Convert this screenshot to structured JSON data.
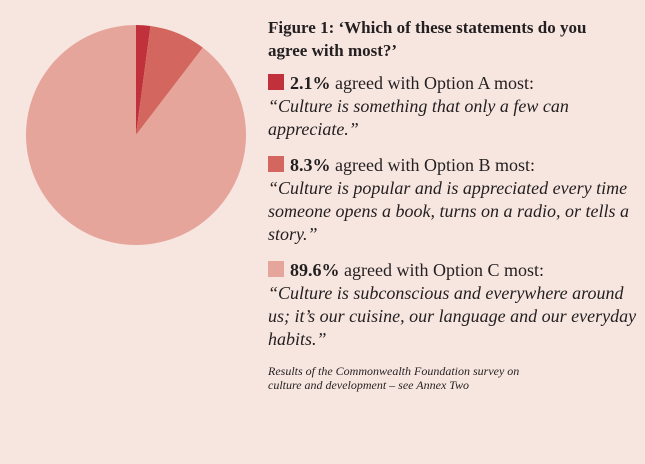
{
  "chart_data": {
    "type": "pie",
    "title": "Figure 1: ‘Which of these statements do you agree with most?’",
    "categories": [
      "agreed with Option A most:",
      "agreed with Option B most:",
      "agreed with Option C most:"
    ],
    "values": [
      2.1,
      8.3,
      89.6
    ],
    "value_labels": [
      "2.1%",
      "8.3%",
      "89.6%"
    ],
    "quotes": [
      "“Culture is something that only a few can appreciate.”",
      "“Culture is popular and is appreciated every time someone opens a book, turns on a radio, or tells a story.”",
      "“Culture is subconscious and everywhere around us; it’s our cuisine, our language and our everyday habits.”"
    ],
    "colors": [
      "#c1313b",
      "#d3675f",
      "#e5a59b"
    ],
    "note": "Results of the Commonwealth Foundation survey on culture and development – see Annex Two"
  }
}
